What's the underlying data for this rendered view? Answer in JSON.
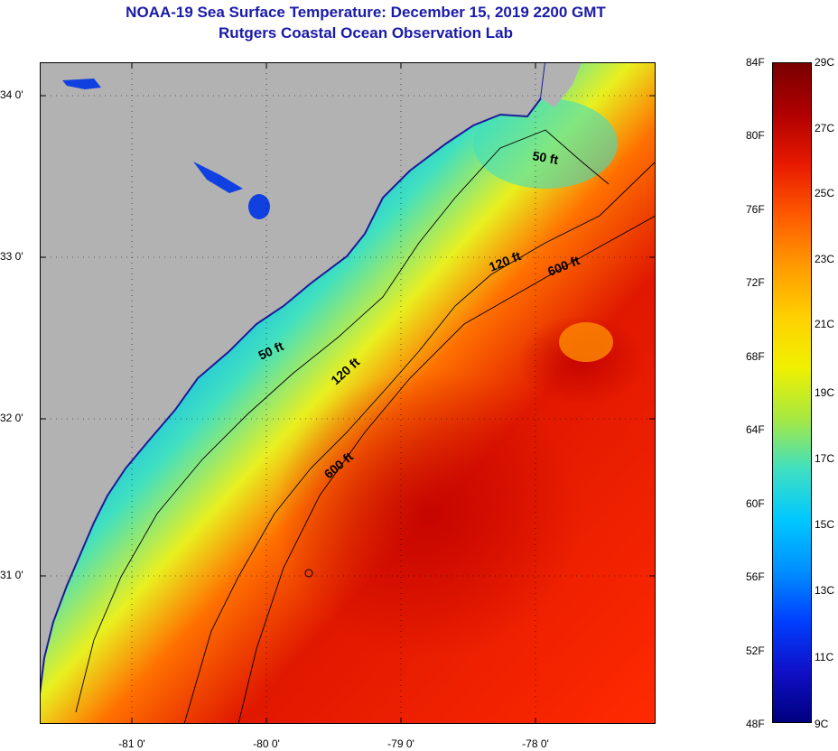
{
  "title": {
    "line1": "NOAA-19 Sea Surface Temperature:  December 15, 2019 2200 GMT",
    "line2": "Rutgers Coastal Ocean Observation Lab"
  },
  "map": {
    "lat_labels": [
      "34 0'",
      "33 0'",
      "32 0'",
      "31 0'"
    ],
    "lon_labels": [
      "-81 0'",
      "-80 0'",
      "-79 0'",
      "-78 0'"
    ],
    "contours": [
      {
        "label": "50 ft",
        "depth": 50
      },
      {
        "label": "50 ft",
        "depth": 50
      },
      {
        "label": "120 ft",
        "depth": 120
      },
      {
        "label": "120 ft",
        "depth": 120
      },
      {
        "label": "600 ft",
        "depth": 600
      },
      {
        "label": "600 ft",
        "depth": 600
      }
    ],
    "colors": {
      "land": "#b2b2b2",
      "frame": "#000000",
      "contour": "#000000"
    }
  },
  "colorbar": {
    "f_labels": [
      "84F",
      "80F",
      "76F",
      "72F",
      "68F",
      "64F",
      "60F",
      "56F",
      "52F",
      "48F"
    ],
    "c_labels": [
      "29C",
      "27C",
      "25C",
      "23C",
      "21C",
      "19C",
      "17C",
      "15C",
      "13C",
      "11C",
      "9C"
    ],
    "f_range": [
      48,
      84
    ],
    "c_range": [
      9,
      29
    ],
    "colors_top_to_bottom": [
      "#7a0000",
      "#b00000",
      "#e81a00",
      "#ff5a00",
      "#ff9a00",
      "#ffd000",
      "#f0f000",
      "#a8e840",
      "#40e0c0",
      "#00c8ff",
      "#0090ff",
      "#0040ff",
      "#1010c8",
      "#000080"
    ]
  }
}
